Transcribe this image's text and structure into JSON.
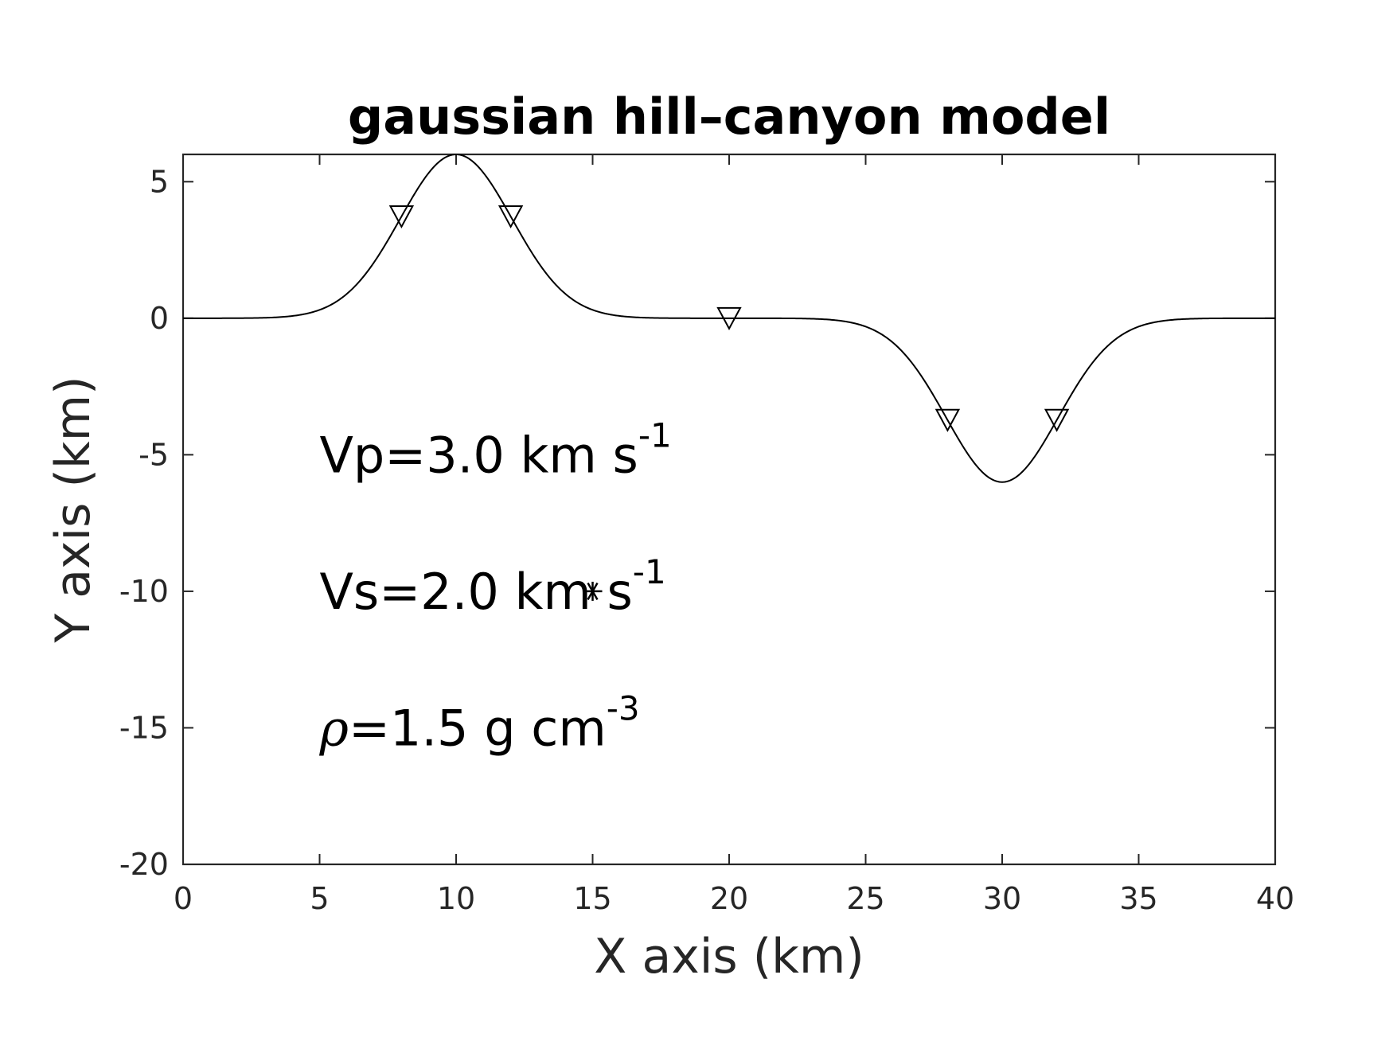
{
  "chart_data": {
    "type": "line",
    "title": "gaussian hill–canyon model",
    "xlabel": "X axis (km)",
    "ylabel": "Y axis (km)",
    "xlim": [
      0,
      40
    ],
    "ylim": [
      -20,
      6
    ],
    "xticks": [
      0,
      5,
      10,
      15,
      20,
      25,
      30,
      35,
      40
    ],
    "xtick_labels": [
      "0",
      "5",
      "10",
      "15",
      "20",
      "25",
      "30",
      "35",
      "40"
    ],
    "yticks": [
      -20,
      -15,
      -10,
      -5,
      0,
      5
    ],
    "ytick_labels": [
      "-20",
      "-15",
      "-10",
      "-5",
      "0",
      "5"
    ],
    "grid": false,
    "line_color": "#000000",
    "surface": {
      "hill": {
        "center": 10,
        "height": 6,
        "sigma": 2.05
      },
      "canyon": {
        "center": 30,
        "depth": 6,
        "sigma": 2.05
      }
    },
    "receivers": {
      "marker": "triangle-down",
      "x": [
        8,
        12,
        20,
        28,
        32
      ]
    },
    "source": {
      "marker": "asterisk",
      "x": 15,
      "y": -10
    },
    "annotations": [
      {
        "text": "Vp=3.0 km s",
        "sup": "-1",
        "x": 5,
        "y": -5
      },
      {
        "text": "Vs=2.0 km s",
        "sup": "-1",
        "x": 5,
        "y": -10
      },
      {
        "symbol": "ρ",
        "text": "=1.5 g cm",
        "sup": "-3",
        "x": 5,
        "y": -15
      }
    ]
  }
}
